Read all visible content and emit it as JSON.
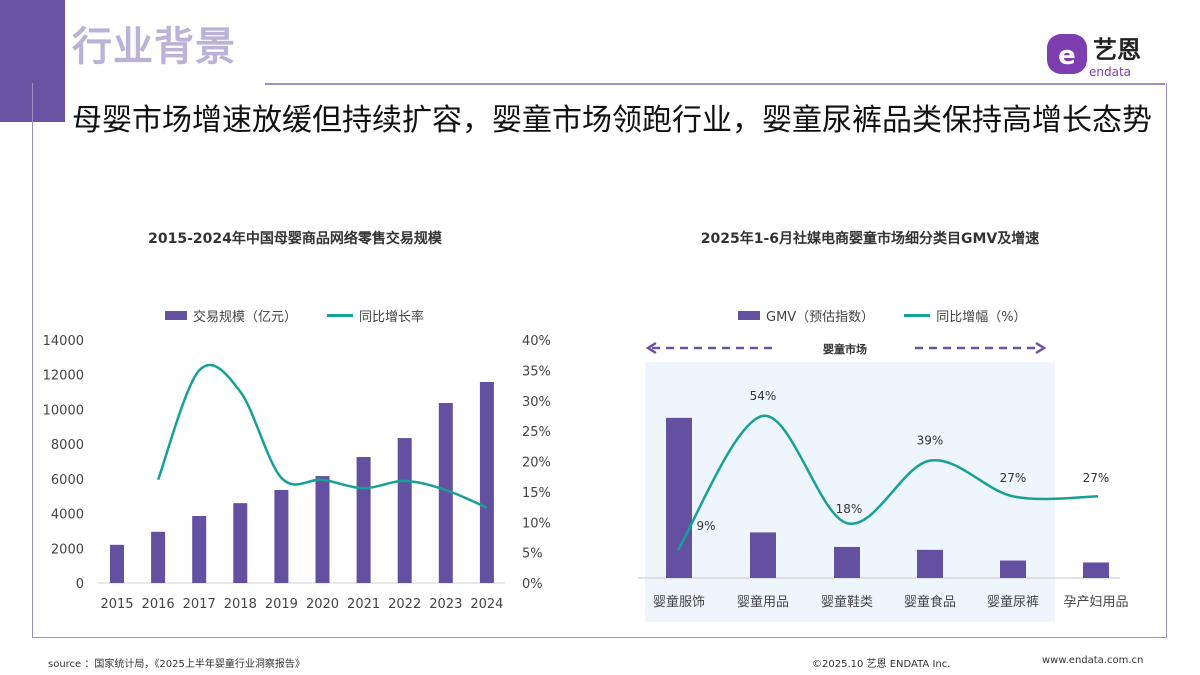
{
  "header": {
    "section_title": "行业背景",
    "headline": "母婴市场增速放缓但持续扩容，婴童市场领跑行业，婴童尿裤品类保持高增长态势",
    "logo_text": "艺恩",
    "logo_sub": "endata"
  },
  "colors": {
    "accent": "#6b52a3",
    "bar": "#6350a0",
    "line": "#17a096",
    "shade": "#eef5fc"
  },
  "chart_data": [
    {
      "type": "bar+line",
      "title": "2015-2024年中国母婴商品网络零售交易规模",
      "categories": [
        "2015",
        "2016",
        "2017",
        "2018",
        "2019",
        "2020",
        "2021",
        "2022",
        "2023",
        "2024"
      ],
      "series": [
        {
          "name": "交易规模（亿元）",
          "type": "bar",
          "axis": "left",
          "values": [
            2200,
            2950,
            3860,
            4600,
            5360,
            6160,
            7260,
            8350,
            10370,
            11580
          ]
        },
        {
          "name": "同比增长率",
          "type": "line",
          "axis": "right",
          "values": [
            null,
            17,
            35,
            31.5,
            17.3,
            17,
            15.6,
            16.8,
            15.3,
            12.4
          ]
        }
      ],
      "ylim_left": [
        0,
        14000
      ],
      "ylim_right": [
        0,
        40
      ],
      "yticks_left": [
        "0",
        "2000",
        "4000",
        "6000",
        "8000",
        "10000",
        "12000",
        "14000"
      ],
      "yticks_right": [
        "0%",
        "5%",
        "10%",
        "15%",
        "20%",
        "25%",
        "30%",
        "35%",
        "40%"
      ],
      "legend": "top",
      "grid": false
    },
    {
      "type": "bar+line",
      "title": "2025年1-6月社媒电商婴童市场细分类目GMV及增速",
      "categories": [
        "婴童服饰",
        "婴童用品",
        "婴童鞋类",
        "婴童食品",
        "婴童尿裤",
        "孕产妇用品"
      ],
      "series": [
        {
          "name": "GMV（预估指数）",
          "type": "bar",
          "values": [
            165,
            47,
            32,
            29,
            18,
            16
          ]
        },
        {
          "name": "同比增幅（%）",
          "type": "line",
          "values": [
            9,
            54,
            18,
            39,
            27,
            27
          ]
        }
      ],
      "data_labels": [
        "9%",
        "54%",
        "18%",
        "39%",
        "27%",
        "27%"
      ],
      "annotation": "婴童市场",
      "legend": "top",
      "grid": false
    }
  ],
  "footer": {
    "source": "source ：国家统计局，《2025上半年婴童行业洞察报告》",
    "copyright": "©2025.10 艺恩 ENDATA Inc.",
    "website": "www.endata.com.cn"
  }
}
